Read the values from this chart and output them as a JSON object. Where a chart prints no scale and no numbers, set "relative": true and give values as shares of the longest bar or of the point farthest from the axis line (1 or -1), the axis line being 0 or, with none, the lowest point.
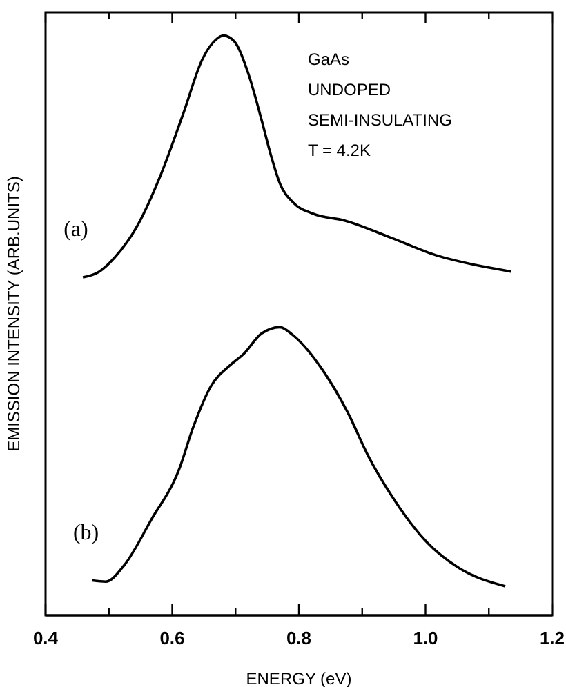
{
  "chart_data": {
    "type": "line",
    "relative": true,
    "xlabel": "ENERGY (eV)",
    "ylabel": "EMISSION INTENSITY (ARB.UNITS)",
    "xlim": [
      0.4,
      1.2
    ],
    "xticks": [
      0.4,
      {
        "value": 0.5,
        "label": null
      },
      0.6,
      {
        "value": 0.7,
        "label": null
      },
      0.8,
      {
        "value": 0.9,
        "label": null
      },
      {
        "value": 1.0,
        "label": "1.0"
      },
      {
        "value": 1.1,
        "label": null
      },
      1.2
    ],
    "annotations": [
      "GaAs",
      "UNDOPED",
      "SEMI-INSULATING",
      "T = 4.2K"
    ],
    "marker": "none",
    "line_style": "solid",
    "series": [
      {
        "name": "(a)",
        "color": "#000000",
        "x": [
          0.459,
          0.485,
          0.509,
          0.546,
          0.582,
          0.617,
          0.648,
          0.669,
          0.681,
          0.698,
          0.72,
          0.741,
          0.756,
          0.77,
          0.791,
          0.822,
          0.872,
          0.944,
          1.017,
          1.089,
          1.135
        ],
        "values": [
          0.583,
          0.593,
          0.617,
          0.674,
          0.76,
          0.864,
          0.96,
          0.993,
          1.0,
          0.99,
          0.935,
          0.855,
          0.793,
          0.745,
          0.712,
          0.693,
          0.681,
          0.652,
          0.621,
          0.602,
          0.593
        ]
      },
      {
        "name": "(b)",
        "color": "#000000",
        "x": [
          0.474,
          0.495,
          0.524,
          0.567,
          0.611,
          0.633,
          0.661,
          0.691,
          0.713,
          0.741,
          0.77,
          0.791,
          0.835,
          0.878,
          0.909,
          0.952,
          1.002,
          1.052,
          1.126
        ],
        "values": [
          0.06,
          0.058,
          0.086,
          0.165,
          0.252,
          0.324,
          0.395,
          0.431,
          0.451,
          0.486,
          0.497,
          0.483,
          0.427,
          0.348,
          0.276,
          0.197,
          0.126,
          0.082,
          0.05
        ]
      }
    ]
  }
}
